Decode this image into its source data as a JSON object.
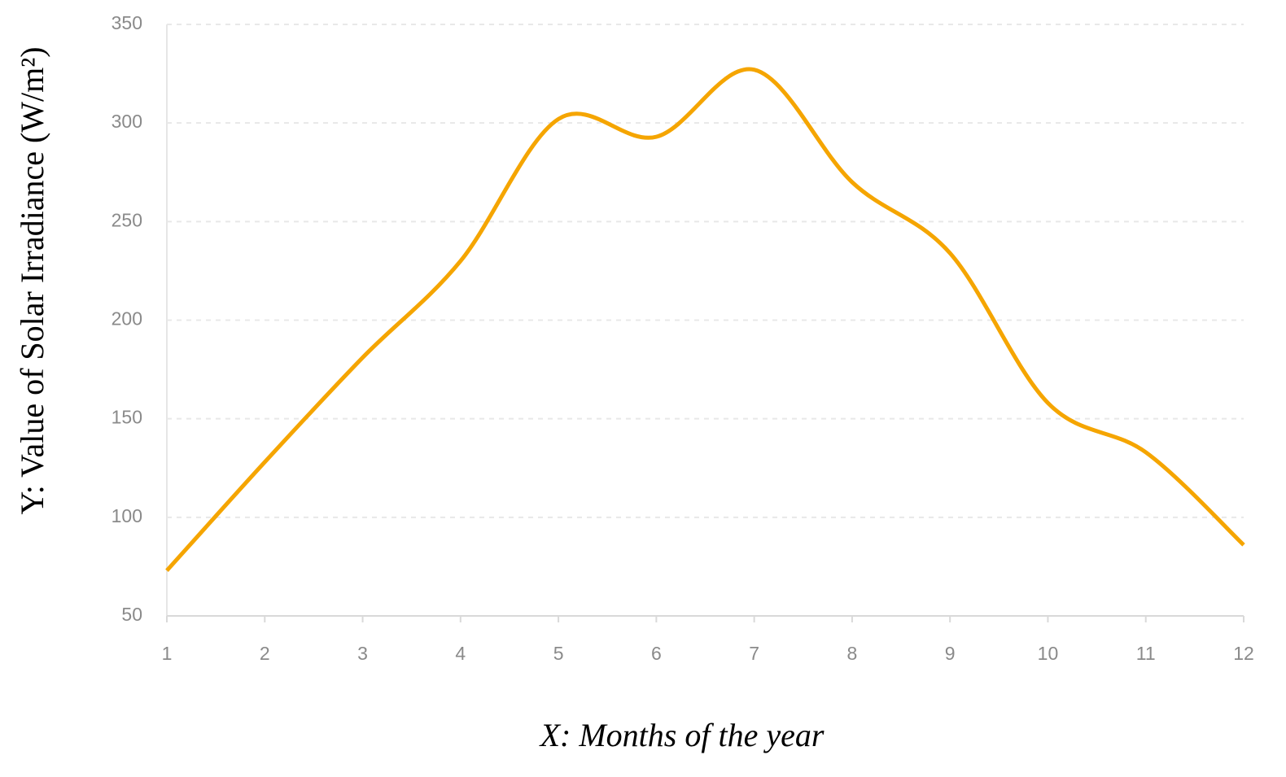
{
  "chart_data": {
    "type": "line",
    "x_label": "X: Months of the year",
    "y_label": "Y: Value of Solar Irradiance (W/m²)",
    "x": [
      1,
      2,
      3,
      4,
      5,
      6,
      7,
      8,
      9,
      10,
      11,
      12
    ],
    "series": [
      {
        "color": "#f5a500",
        "values": [
          73,
          128,
          181,
          230,
          302,
          293,
          327,
          270,
          234,
          158,
          133,
          86
        ]
      }
    ],
    "xlim": [
      1,
      12
    ],
    "xticks": [
      1,
      2,
      3,
      4,
      5,
      6,
      7,
      8,
      9,
      10,
      11,
      12
    ],
    "ylim": [
      50,
      350
    ],
    "yticks": [
      50,
      100,
      150,
      200,
      250,
      300,
      350
    ],
    "grid": true,
    "smooth": true
  }
}
